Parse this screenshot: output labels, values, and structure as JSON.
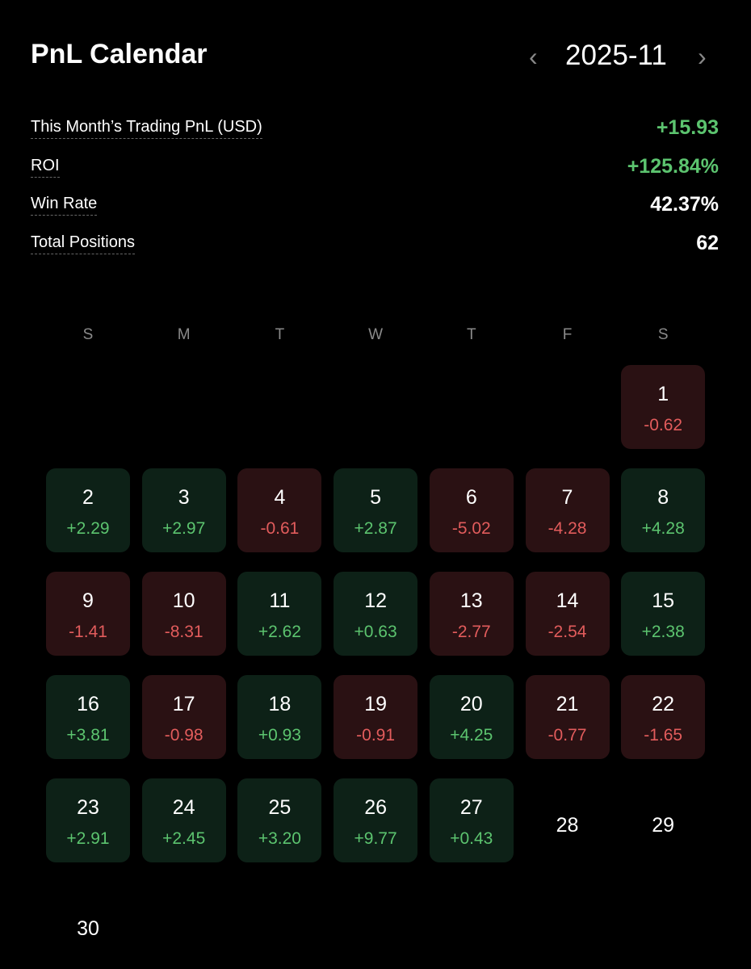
{
  "header": {
    "title": "PnL Calendar",
    "prev": "‹",
    "month": "2025-11",
    "next": "›"
  },
  "stats": [
    {
      "label": "This Month’s Trading PnL (USD)",
      "value": "+15.93"
    },
    {
      "label": "ROI",
      "value": "+125.84%"
    },
    {
      "label": "Win Rate",
      "value": "42.37%"
    },
    {
      "label": "Total Positions",
      "value": "62"
    }
  ],
  "weekdays": [
    "S",
    "M",
    "T",
    "W",
    "T",
    "F",
    "S"
  ],
  "weeks": [
    [
      null,
      null,
      null,
      null,
      null,
      null,
      {
        "day": "1",
        "pnl": "-0.62"
      }
    ],
    [
      {
        "day": "2",
        "pnl": "+2.29"
      },
      {
        "day": "3",
        "pnl": "+2.97"
      },
      {
        "day": "4",
        "pnl": "-0.61"
      },
      {
        "day": "5",
        "pnl": "+2.87"
      },
      {
        "day": "6",
        "pnl": "-5.02"
      },
      {
        "day": "7",
        "pnl": "-4.28"
      },
      {
        "day": "8",
        "pnl": "+4.28"
      }
    ],
    [
      {
        "day": "9",
        "pnl": "-1.41"
      },
      {
        "day": "10",
        "pnl": "-8.31"
      },
      {
        "day": "11",
        "pnl": "+2.62"
      },
      {
        "day": "12",
        "pnl": "+0.63"
      },
      {
        "day": "13",
        "pnl": "-2.77"
      },
      {
        "day": "14",
        "pnl": "-2.54"
      },
      {
        "day": "15",
        "pnl": "+2.38"
      }
    ],
    [
      {
        "day": "16",
        "pnl": "+3.81"
      },
      {
        "day": "17",
        "pnl": "-0.98"
      },
      {
        "day": "18",
        "pnl": "+0.93"
      },
      {
        "day": "19",
        "pnl": "-0.91"
      },
      {
        "day": "20",
        "pnl": "+4.25"
      },
      {
        "day": "21",
        "pnl": "-0.77"
      },
      {
        "day": "22",
        "pnl": "-1.65"
      }
    ],
    [
      {
        "day": "23",
        "pnl": "+2.91"
      },
      {
        "day": "24",
        "pnl": "+2.45"
      },
      {
        "day": "25",
        "pnl": "+3.20"
      },
      {
        "day": "26",
        "pnl": "+9.77"
      },
      {
        "day": "27",
        "pnl": "+0.43"
      },
      {
        "day": "28"
      },
      {
        "day": "29"
      }
    ],
    [
      {
        "day": "30"
      }
    ]
  ]
}
